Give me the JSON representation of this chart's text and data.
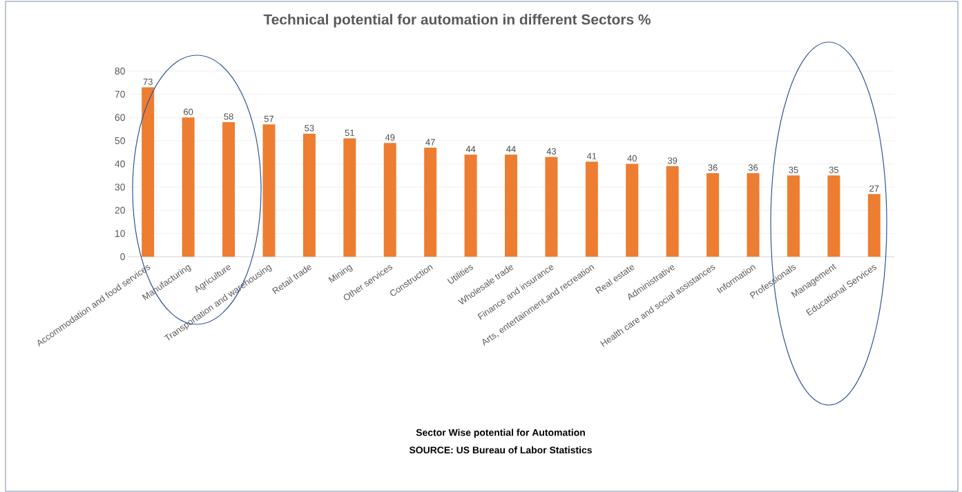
{
  "chart_data": {
    "type": "bar",
    "title": "Technical potential for automation in different Sectors %",
    "categories": [
      "Accommodation and food services",
      "Manufacturing",
      "Agriculture",
      "Transportation and warehousing",
      "Retail trade",
      "Mining",
      "Other services",
      "Construction",
      "Utilities",
      "Wholesale trade",
      "Finance and insurance",
      "Arts, entertainment,and recreation",
      "Real estate",
      "Administrative",
      "Health care and social assistances",
      "Information",
      "Professionals",
      "Management",
      "Educational Services"
    ],
    "values": [
      73,
      60,
      58,
      57,
      53,
      51,
      49,
      47,
      44,
      44,
      43,
      41,
      40,
      39,
      36,
      36,
      35,
      35,
      27
    ],
    "color": "#ed7d31",
    "ylim": [
      0,
      80
    ],
    "yticks": [
      0,
      10,
      20,
      30,
      40,
      50,
      60,
      70,
      80
    ],
    "grid": "y",
    "data_labels": true,
    "annotations": [
      "Sector Wise potential for Automation",
      "SOURCE: US Bureau of Labor Statistics"
    ]
  }
}
